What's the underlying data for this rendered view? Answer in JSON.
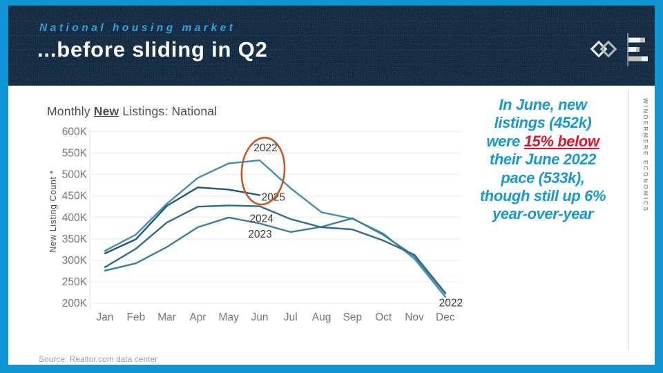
{
  "header": {
    "eyebrow": "National housing market",
    "title": "...before sliding in Q2",
    "logos": [
      "windermere-w-diamond-logo",
      "economics-bar-chart-logo"
    ]
  },
  "sidebar": {
    "vertical_text": "WINDERMERE  ECONOMICS"
  },
  "footer": {
    "source_note": "Source: Realtor.com data center"
  },
  "callout": {
    "text": "In June, new listings (452k) were 15% below their June 2022 pace (533k), though still up 6% year-over-year",
    "highlight": "15% below",
    "color": "#1798d6",
    "highlight_color": "#e31227",
    "lines": [
      [
        {
          "t": "In June, new",
          "s": "b"
        }
      ],
      [
        {
          "t": "listings (452k)",
          "s": "b"
        }
      ],
      [
        {
          "t": "were ",
          "s": "b"
        },
        {
          "t": "15% below",
          "s": "r"
        }
      ],
      [
        {
          "t": "their June 2022",
          "s": "b"
        }
      ],
      [
        {
          "t": "pace (533k),",
          "s": "b"
        }
      ],
      [
        {
          "t": "though still up 6%",
          "s": "b"
        }
      ],
      [
        {
          "t": "year-over-year",
          "s": "b"
        }
      ]
    ]
  },
  "colors": {
    "frame": "#0f95d4",
    "header_band": "#1a3048",
    "eyebrow": "#2ea6dd",
    "annotation": "#c05a26"
  },
  "chart_data": {
    "type": "line",
    "title": "Monthly New Listings: National",
    "title_parts": {
      "prefix": "Monthly ",
      "emphasis": "New",
      "suffix": " Listings: National"
    },
    "ylabel": "New Listing Count *",
    "x": [
      "Jan",
      "Feb",
      "Mar",
      "Apr",
      "May",
      "Jun",
      "Jul",
      "Aug",
      "Sep",
      "Oct",
      "Nov",
      "Dec"
    ],
    "y_ticks": [
      "200K",
      "250K",
      "300K",
      "350K",
      "400K",
      "450K",
      "500K",
      "550K",
      "600K"
    ],
    "ylim_thousands": [
      200,
      600
    ],
    "grid": "horizontal",
    "legend": "inline-labels",
    "series": [
      {
        "name": "2022",
        "color": "#438eb0",
        "values": [
          322,
          360,
          432,
          492,
          526,
          533,
          468,
          412,
          397,
          362,
          304,
          215
        ]
      },
      {
        "name": "2023",
        "color": "#35809f",
        "values": [
          276,
          293,
          331,
          377,
          400,
          386,
          366,
          378,
          398,
          359,
          310,
          222
        ]
      },
      {
        "name": "2024",
        "color": "#2a6c8e",
        "values": [
          284,
          327,
          388,
          425,
          428,
          426,
          396,
          377,
          372,
          346,
          313,
          224
        ]
      },
      {
        "name": "2025",
        "color": "#1d5878",
        "values": [
          316,
          349,
          427,
          470,
          465,
          452
        ]
      }
    ],
    "series_labels": [
      {
        "text": "2022",
        "month_index": 5.19,
        "value": 562
      },
      {
        "text": "2025",
        "month_index": 5.44,
        "value": 447
      },
      {
        "text": "2024",
        "month_index": 5.06,
        "value": 397
      },
      {
        "text": "2023",
        "month_index": 5.01,
        "value": 361
      },
      {
        "text": "2022",
        "month_index": 11.18,
        "value": 201
      }
    ],
    "annotation_ellipse": {
      "month_index": 5.11,
      "value": 508,
      "rx_months": 0.69,
      "ry_value": 78,
      "color": "#c05a26",
      "rotation_deg": 5
    }
  }
}
